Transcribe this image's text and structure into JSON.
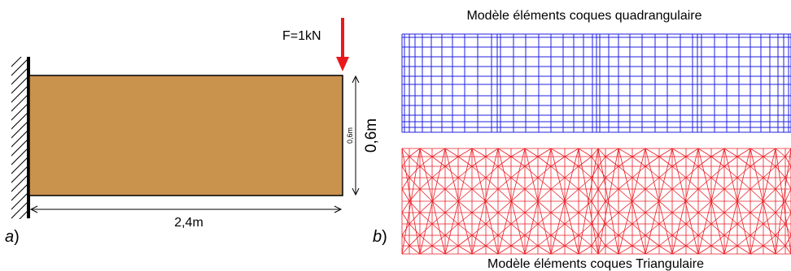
{
  "panel_a": {
    "label_letter": "a",
    "label_paren": ")",
    "force_label": "F=1kN",
    "length_label": "2,4m",
    "height_label": "0,6m",
    "height_label_small": "0,6m",
    "beam_color": "#c9924d",
    "force_color": "#e8191c"
  },
  "panel_b": {
    "label_letter": "b",
    "label_paren": ")",
    "quad_title": "Modèle éléments coques quadrangulaire",
    "tri_title": "Modèle éléments coques Triangulaire",
    "quad_mesh_color": "#1f1fe0",
    "tri_mesh_color": "#ec1c24"
  }
}
